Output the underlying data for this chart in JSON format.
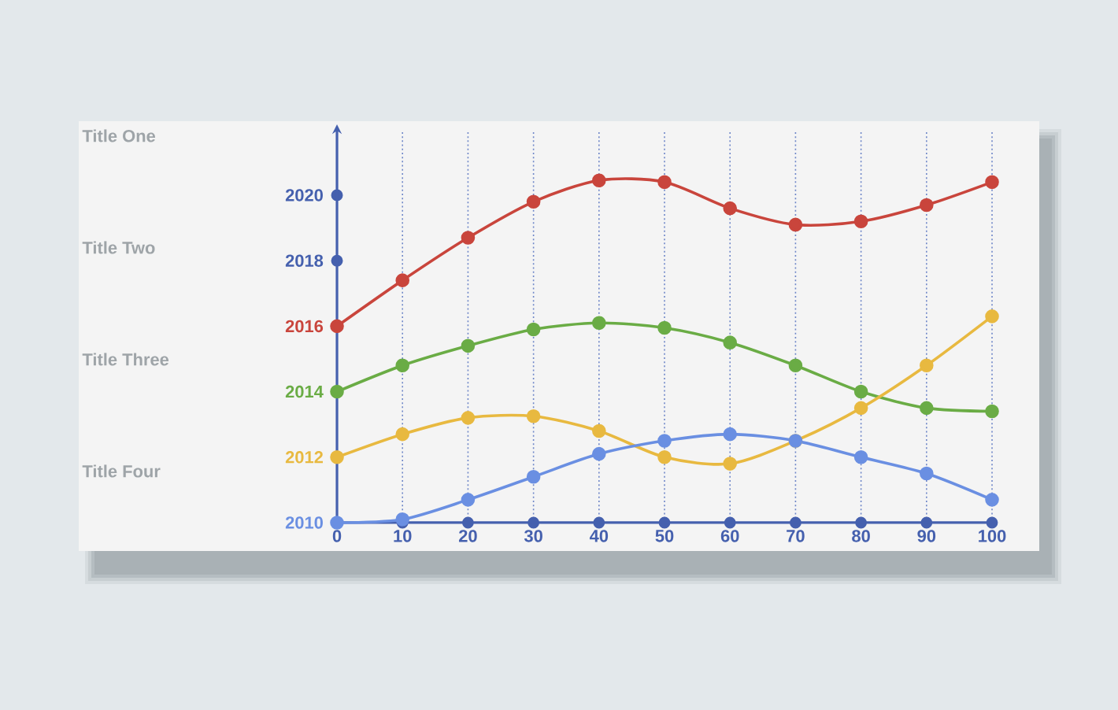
{
  "chart_data": {
    "type": "line",
    "x": [
      0,
      10,
      20,
      30,
      40,
      50,
      60,
      70,
      80,
      90,
      100
    ],
    "series": [
      {
        "color": "#c9453c",
        "values": [
          2016,
          2017.4,
          2018.7,
          2019.8,
          2020.45,
          2020.4,
          2019.6,
          2019.1,
          2019.2,
          2019.7,
          2020.4
        ]
      },
      {
        "color": "#6aac45",
        "values": [
          2014,
          2014.8,
          2015.4,
          2015.9,
          2016.1,
          2015.95,
          2015.5,
          2014.8,
          2014.0,
          2013.5,
          2013.4
        ]
      },
      {
        "color": "#e8b940",
        "values": [
          2012,
          2012.7,
          2013.2,
          2013.25,
          2012.8,
          2012.0,
          2011.8,
          2012.5,
          2013.5,
          2014.8,
          2016.3
        ]
      },
      {
        "color": "#6a8fe2",
        "values": [
          2010,
          2010.1,
          2010.7,
          2011.4,
          2012.1,
          2012.5,
          2012.7,
          2012.5,
          2012.0,
          2011.5,
          2010.7
        ]
      }
    ],
    "xlim": [
      0,
      100
    ],
    "ylim": [
      2010,
      2022
    ],
    "xticks": [
      0,
      10,
      20,
      30,
      40,
      50,
      60,
      70,
      80,
      90,
      100
    ],
    "yticks": [
      2010,
      2012,
      2014,
      2016,
      2018,
      2020
    ],
    "grid": "x",
    "marker": "circle",
    "line_style": "solid",
    "annotations": [
      "Title One",
      "Title Two",
      "Title Three",
      "Title Four"
    ]
  }
}
